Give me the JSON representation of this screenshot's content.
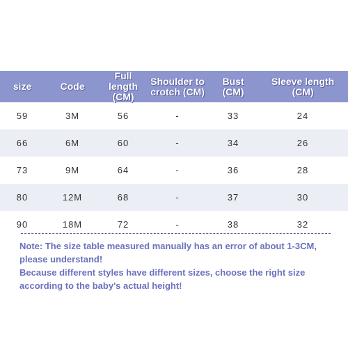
{
  "table": {
    "headers": [
      {
        "line1": "size",
        "line2": ""
      },
      {
        "line1": "Code",
        "line2": ""
      },
      {
        "line1": "Full length",
        "line2": "(CM)"
      },
      {
        "line1": "Shoulder to",
        "line2": "crotch (CM)"
      },
      {
        "line1": "Bust",
        "line2": "(CM)"
      },
      {
        "line1": "Sleeve length",
        "line2": "(CM)"
      }
    ],
    "rows": [
      [
        "59",
        "3M",
        "56",
        "-",
        "33",
        "24"
      ],
      [
        "66",
        "6M",
        "60",
        "-",
        "34",
        "26"
      ],
      [
        "73",
        "9M",
        "64",
        "-",
        "36",
        "28"
      ],
      [
        "80",
        "12M",
        "68",
        "-",
        "37",
        "30"
      ],
      [
        "90",
        "18M",
        "72",
        "-",
        "38",
        "32"
      ]
    ]
  },
  "note": {
    "lines": [
      "Note: The size table measured manually has an error of about 1-3CM,",
      "please understand!",
      "Because different styles have different sizes, choose the right size",
      "according to the baby's actual height!"
    ]
  },
  "colors": {
    "header_bg": "#8d95cf",
    "header_text": "#ffffff",
    "row_alt_bg": "#eceef6",
    "note_text": "#6a72bd",
    "divider": "#555c9c"
  }
}
